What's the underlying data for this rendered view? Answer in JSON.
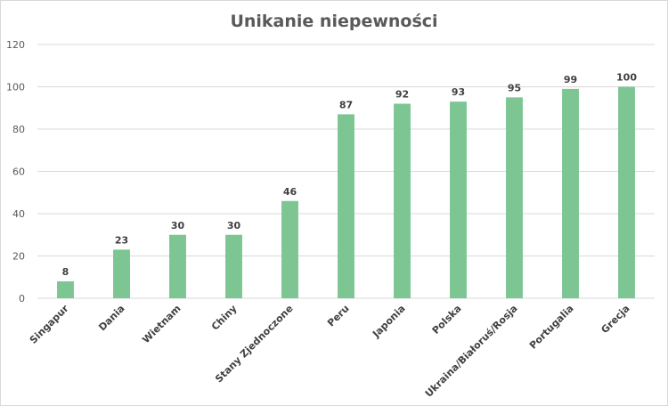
{
  "chart_data": {
    "type": "bar",
    "title": "Unikanie niepewności",
    "xlabel": "",
    "ylabel": "",
    "categories": [
      "Singapur",
      "Dania",
      "Wietnam",
      "Chiny",
      "Stany Zjednoczone",
      "Peru",
      "Japonia",
      "Polska",
      "Ukraina/Białoruś/Rosja",
      "Portugalia",
      "Grecja"
    ],
    "values": [
      8,
      23,
      30,
      30,
      46,
      87,
      92,
      93,
      95,
      99,
      100
    ],
    "ylim": [
      0,
      120
    ],
    "yticks": [
      0,
      20,
      40,
      60,
      80,
      100,
      120
    ],
    "grid": true,
    "legend": "none",
    "colors": {
      "bar": "#7dc593",
      "grid": "#d9d9d9",
      "text": "#595959"
    }
  }
}
